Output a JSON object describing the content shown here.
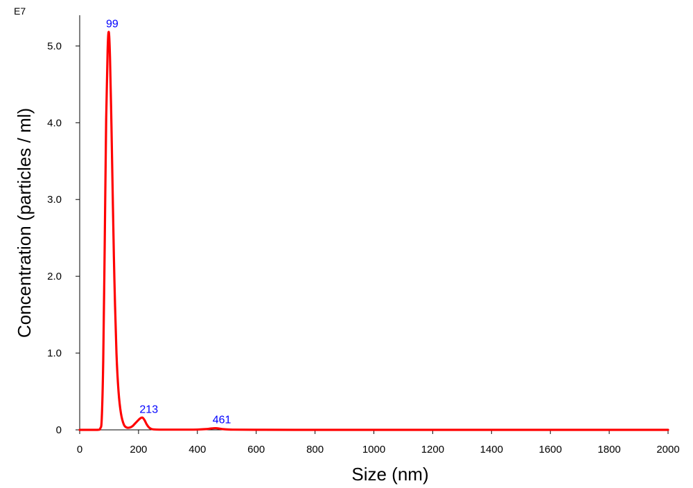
{
  "chart_data": {
    "type": "line",
    "xlabel": "Size (nm)",
    "ylabel": "Concentration (particles / ml)",
    "y_exponent_label": "E7",
    "xlim": [
      0,
      2000
    ],
    "ylim": [
      0,
      5.4
    ],
    "x_ticks": [
      "0",
      "200",
      "400",
      "600",
      "800",
      "1000",
      "1200",
      "1400",
      "1600",
      "1800",
      "2000"
    ],
    "y_ticks": [
      "0",
      "1.0",
      "2.0",
      "3.0",
      "4.0",
      "5.0"
    ],
    "grid": false,
    "line_color": "#ff0000",
    "peak_label_color": "#0000ff",
    "series": [
      {
        "x": [
          0,
          60,
          70,
          75,
          80,
          85,
          90,
          95,
          99,
          103,
          108,
          113,
          118,
          125,
          132,
          140,
          150,
          160,
          170,
          180,
          190,
          200,
          206,
          213,
          220,
          228,
          236,
          245,
          260,
          300,
          350,
          400,
          430,
          445,
          455,
          461,
          467,
          477,
          492,
          520,
          600,
          800,
          1000,
          1200,
          1400,
          1600,
          1800,
          2000
        ],
        "values": [
          0,
          0,
          0.02,
          0.15,
          0.9,
          2.4,
          4.05,
          4.95,
          5.18,
          4.85,
          3.95,
          2.9,
          1.95,
          1.0,
          0.5,
          0.22,
          0.07,
          0.03,
          0.03,
          0.05,
          0.09,
          0.13,
          0.15,
          0.16,
          0.13,
          0.07,
          0.03,
          0.01,
          0.004,
          0.003,
          0.003,
          0.004,
          0.01,
          0.017,
          0.021,
          0.022,
          0.021,
          0.015,
          0.008,
          0.003,
          0.001,
          0,
          0,
          0,
          0,
          0,
          0,
          0
        ]
      }
    ],
    "peaks": [
      {
        "x": 99,
        "y": 5.18,
        "label": "99"
      },
      {
        "x": 213,
        "y": 0.16,
        "label": "213"
      },
      {
        "x": 461,
        "y": 0.022,
        "label": "461"
      }
    ]
  }
}
